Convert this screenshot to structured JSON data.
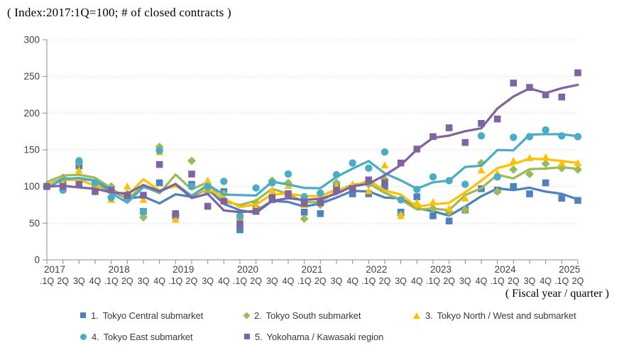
{
  "title": "( Index:2017:1Q=100; # of closed contracts )",
  "x_axis_caption": "( Fiscal year / quarter )",
  "y_axis": {
    "min": 0,
    "max": 300,
    "step": 50,
    "tick_labels": [
      "0",
      "50",
      "100",
      "150",
      "200",
      "250",
      "300"
    ]
  },
  "x_axis": {
    "years": [
      {
        "label": "2017",
        "quarters": [
          ".1Q",
          "2Q",
          "3Q",
          "4Q"
        ]
      },
      {
        "label": "2018",
        "quarters": [
          ".1Q",
          "2Q",
          "3Q",
          "4Q"
        ]
      },
      {
        "label": "2019",
        "quarters": [
          ".1Q",
          "2Q",
          "3Q",
          "4Q"
        ]
      },
      {
        "label": "2020",
        "quarters": [
          ".1Q",
          "2Q",
          "3Q",
          "4Q"
        ]
      },
      {
        "label": "2021",
        "quarters": [
          ".1Q",
          "2Q",
          "3Q",
          "4Q"
        ]
      },
      {
        "label": "2022",
        "quarters": [
          ".1Q",
          "2Q",
          "3Q",
          "4Q"
        ]
      },
      {
        "label": "2023",
        "quarters": [
          ".1Q",
          "2Q",
          "3Q",
          "4Q"
        ]
      },
      {
        "label": "2024",
        "quarters": [
          ".1Q",
          "2Q",
          "3Q",
          "4Q"
        ]
      },
      {
        "label": "2025",
        "quarters": [
          ".1Q",
          "2Q"
        ]
      }
    ]
  },
  "chart_data": {
    "type": "scatter",
    "note": "markers = quarterly index values (2017:1Q=100); smooth lines = moving-average trend of each series",
    "index_base": "2017:1Q=100",
    "ylim": [
      0,
      300
    ],
    "grid": "horizontal dotted gridlines every 50",
    "legend_position": "bottom",
    "x": [
      "2017.1Q",
      "2017.2Q",
      "2017.3Q",
      "2017.4Q",
      "2018.1Q",
      "2018.2Q",
      "2018.3Q",
      "2018.4Q",
      "2019.1Q",
      "2019.2Q",
      "2019.3Q",
      "2019.4Q",
      "2020.1Q",
      "2020.2Q",
      "2020.3Q",
      "2020.4Q",
      "2021.1Q",
      "2021.2Q",
      "2021.3Q",
      "2021.4Q",
      "2022.1Q",
      "2022.2Q",
      "2022.3Q",
      "2022.4Q",
      "2023.1Q",
      "2023.2Q",
      "2023.3Q",
      "2023.4Q",
      "2024.1Q",
      "2024.2Q",
      "2024.3Q",
      "2024.4Q",
      "2025.1Q",
      "2025.2Q"
    ],
    "series": [
      {
        "num": "1.",
        "name": "Tokyo Central submarket",
        "color": "#4F81BD",
        "marker": "square",
        "values": [
          100,
          104,
          128,
          100,
          96,
          88,
          66,
          105,
          60,
          103,
          95,
          93,
          41,
          69,
          82,
          90,
          65,
          63,
          102,
          90,
          90,
          100,
          65,
          86,
          60,
          53,
          68,
          97,
          95,
          100,
          90,
          105,
          84,
          81
        ]
      },
      {
        "num": "2.",
        "name": "Tokyo South submarket",
        "color": "#9BBB59",
        "marker": "diamond",
        "values": [
          100,
          112,
          133,
          103,
          100,
          90,
          58,
          154,
          60,
          135,
          93,
          90,
          56,
          78,
          108,
          105,
          56,
          75,
          105,
          100,
          103,
          110,
          61,
          75,
          70,
          65,
          68,
          132,
          93,
          123,
          117,
          131,
          125,
          123
        ]
      },
      {
        "num": "3.",
        "name": "Tokyo North / West and  submarket",
        "color": "#FFC000",
        "marker": "triangle",
        "values": [
          100,
          105,
          122,
          100,
          82,
          100,
          82,
          147,
          55,
          100,
          108,
          84,
          60,
          72,
          95,
          101,
          75,
          85,
          100,
          103,
          94,
          129,
          60,
          78,
          79,
          70,
          84,
          122,
          118,
          135,
          139,
          140,
          132,
          132
        ]
      },
      {
        "num": "4.",
        "name": "Tokyo East submarket",
        "color": "#4BACC6",
        "marker": "circle",
        "values": [
          100,
          95,
          135,
          105,
          85,
          83,
          66,
          149,
          62,
          100,
          100,
          107,
          60,
          98,
          105,
          117,
          86,
          91,
          116,
          132,
          125,
          147,
          82,
          96,
          113,
          108,
          103,
          169,
          113,
          167,
          168,
          177,
          169,
          168
        ]
      },
      {
        "num": "5.",
        "name": "Yokohama / Kawasaki region",
        "color": "#8064A2",
        "marker": "square",
        "values": [
          100,
          100,
          103,
          93,
          95,
          88,
          88,
          130,
          63,
          117,
          73,
          80,
          49,
          66,
          85,
          90,
          77,
          78,
          95,
          97,
          109,
          105,
          132,
          151,
          168,
          180,
          160,
          186,
          192,
          241,
          235,
          225,
          222,
          255
        ]
      }
    ]
  },
  "style_colors": {
    "axis": "#8C8C8C",
    "gridline": "#C9C9C9",
    "tick_text": "#3F3F3F"
  }
}
